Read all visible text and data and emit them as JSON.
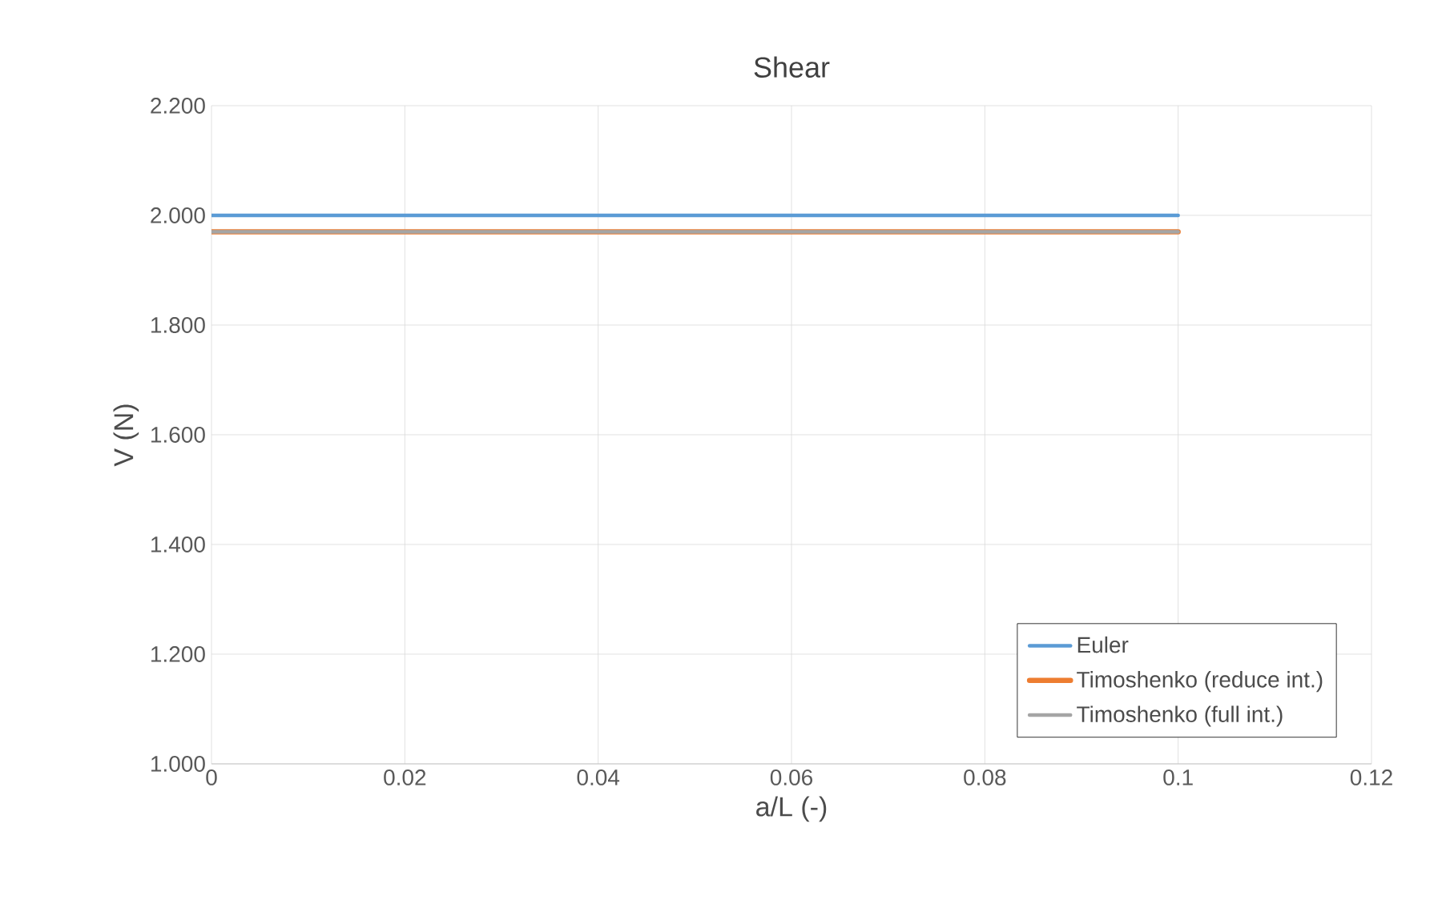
{
  "chart_data": {
    "type": "line",
    "title": "Shear",
    "xlabel": "a/L (-)",
    "ylabel": "V (N)",
    "x": [
      0,
      0.1
    ],
    "series": [
      {
        "name": "Euler",
        "color": "#5b9bd5",
        "values": [
          2.0,
          2.0
        ]
      },
      {
        "name": "Timoshenko (reduce int.)",
        "color": "#ed7d31",
        "values": [
          1.97,
          1.97
        ]
      },
      {
        "name": "Timoshenko (full int.)",
        "color": "#a5a5a5",
        "values": [
          1.97,
          1.97
        ]
      }
    ],
    "xlim": [
      0,
      0.12
    ],
    "xticks": [
      {
        "value": 0,
        "label": "0"
      },
      {
        "value": 0.02,
        "label": "0.02"
      },
      {
        "value": 0.04,
        "label": "0.04"
      },
      {
        "value": 0.06,
        "label": "0.06"
      },
      {
        "value": 0.08,
        "label": "0.08"
      },
      {
        "value": 0.1,
        "label": "0.1"
      },
      {
        "value": 0.12,
        "label": "0.12"
      }
    ],
    "ylim": [
      1.0,
      2.2
    ],
    "yticks": [
      {
        "value": 1.0,
        "label": "1.000"
      },
      {
        "value": 1.2,
        "label": "1.200"
      },
      {
        "value": 1.4,
        "label": "1.400"
      },
      {
        "value": 1.6,
        "label": "1.600"
      },
      {
        "value": 1.8,
        "label": "1.800"
      },
      {
        "value": 2.0,
        "label": "2.000"
      },
      {
        "value": 2.2,
        "label": "2.200"
      }
    ],
    "grid": true,
    "legend": "bottom right",
    "marker": "none",
    "line_style": "solid"
  }
}
